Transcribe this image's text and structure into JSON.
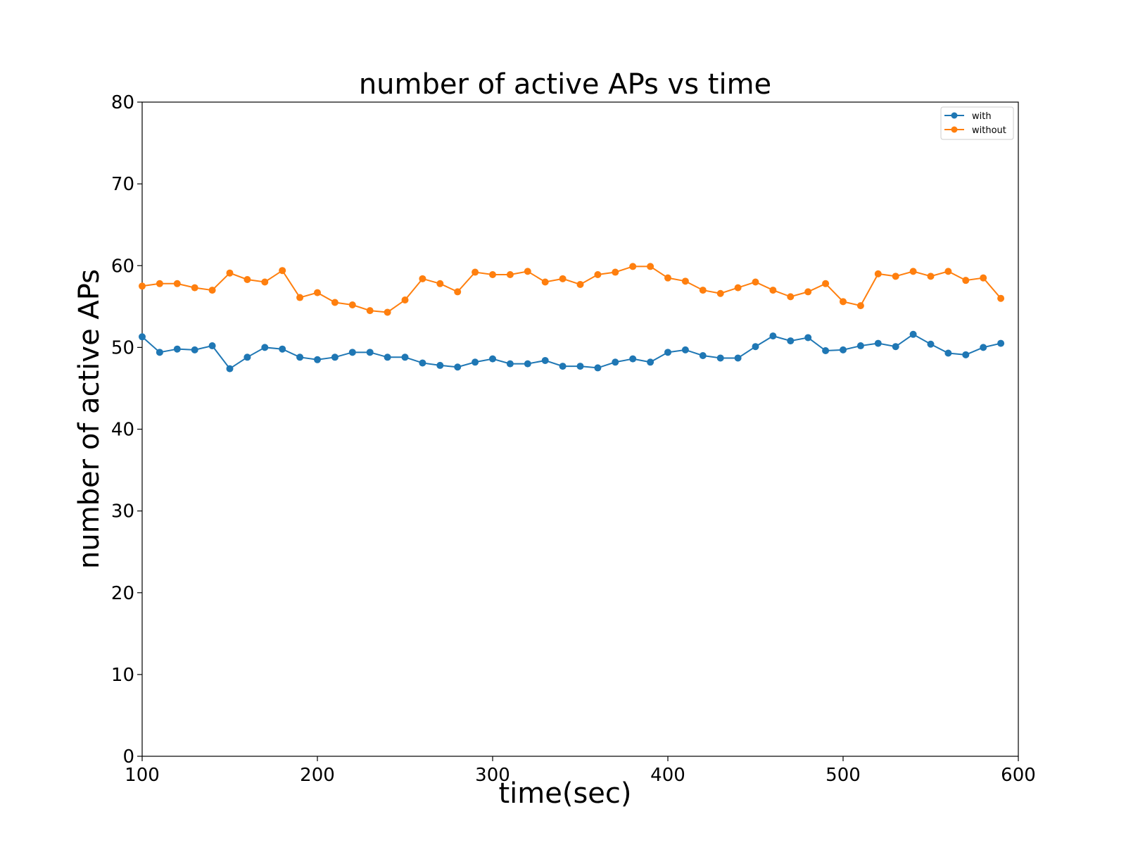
{
  "chart_data": {
    "type": "line",
    "title": "number of active APs vs time",
    "xlabel": "time(sec)",
    "ylabel": "number of active APs",
    "xlim": [
      100,
      600
    ],
    "ylim": [
      0,
      80
    ],
    "xticks": [
      100,
      200,
      300,
      400,
      500,
      600
    ],
    "yticks": [
      0,
      10,
      20,
      30,
      40,
      50,
      60,
      70,
      80
    ],
    "grid": false,
    "legend_position": "top-right",
    "x": [
      100,
      110,
      120,
      130,
      140,
      150,
      160,
      170,
      180,
      190,
      200,
      210,
      220,
      230,
      240,
      250,
      260,
      270,
      280,
      290,
      300,
      310,
      320,
      330,
      340,
      350,
      360,
      370,
      380,
      390,
      400,
      410,
      420,
      430,
      440,
      450,
      460,
      470,
      480,
      490,
      500,
      510,
      520,
      530,
      540,
      550,
      560,
      570,
      580,
      590
    ],
    "series": [
      {
        "name": "with",
        "color": "#1f77b4",
        "values": [
          51.3,
          49.4,
          49.8,
          49.7,
          50.2,
          47.4,
          48.8,
          50.0,
          49.8,
          48.8,
          48.5,
          48.8,
          49.4,
          49.4,
          48.8,
          48.8,
          48.1,
          47.8,
          47.6,
          48.2,
          48.6,
          48.0,
          48.0,
          48.4,
          47.7,
          47.7,
          47.5,
          48.2,
          48.6,
          48.2,
          49.4,
          49.7,
          49.0,
          48.7,
          48.7,
          50.1,
          51.4,
          50.8,
          51.2,
          49.6,
          49.7,
          50.2,
          50.5,
          50.1,
          51.6,
          50.4,
          49.3,
          49.1,
          50.0,
          50.5
        ]
      },
      {
        "name": "without",
        "color": "#ff7f0e",
        "values": [
          57.5,
          57.8,
          57.8,
          57.3,
          57.0,
          59.1,
          58.3,
          58.0,
          59.4,
          56.1,
          56.7,
          55.5,
          55.2,
          54.5,
          54.3,
          55.8,
          58.4,
          57.8,
          56.8,
          59.2,
          58.9,
          58.9,
          59.3,
          58.0,
          58.4,
          57.7,
          58.9,
          59.2,
          59.9,
          59.9,
          58.5,
          58.1,
          57.0,
          56.6,
          57.3,
          58.0,
          57.0,
          56.2,
          56.8,
          57.8,
          55.6,
          55.1,
          59.0,
          58.7,
          59.3,
          58.7,
          59.3,
          58.2,
          58.5,
          56.0
        ]
      }
    ]
  }
}
